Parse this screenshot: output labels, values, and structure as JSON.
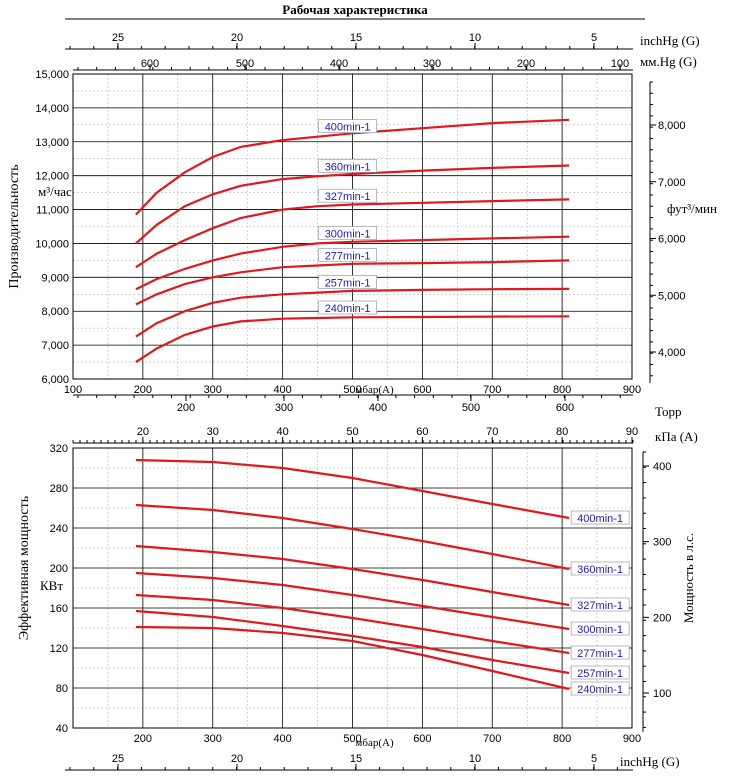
{
  "title": "Рабочая характеристика",
  "colors": {
    "curve": "#e0191e",
    "label_text": "#1a1ad0",
    "grid_major": "#000000",
    "grid_minor": "#b8b8b8"
  },
  "chart_data": [
    {
      "type": "line",
      "ylabel": "Производительность",
      "yunit": "м³/час",
      "y2label": "фут³/мин",
      "xlabel": "мбар(A)",
      "xlim": [
        100,
        900
      ],
      "ylim": [
        6000,
        15000
      ],
      "x_ticks": [
        "100",
        "200",
        "300",
        "400",
        "500",
        "600",
        "700",
        "800",
        "900"
      ],
      "y_ticks": [
        "6,000",
        "7,000",
        "8,000",
        "9,000",
        "10,000",
        "11,000",
        "12,000",
        "13,000",
        "14,000",
        "15,000"
      ],
      "y2_ticks": [
        "4,000",
        "5,000",
        "6,000",
        "7,000",
        "8,000"
      ],
      "top_axis1": {
        "label": "inchHg (G)",
        "ticks": [
          "25",
          "20",
          "15",
          "10",
          "5"
        ]
      },
      "top_axis2": {
        "label": "мм.Hg (G)",
        "ticks": [
          "600",
          "500",
          "400",
          "300",
          "200",
          "100"
        ]
      },
      "series": [
        {
          "name": "400min-1",
          "x": [
            190,
            220,
            260,
            300,
            340,
            400,
            450,
            500,
            600,
            700,
            810
          ],
          "y": [
            10850,
            11500,
            12100,
            12550,
            12850,
            13050,
            13150,
            13250,
            13400,
            13550,
            13650
          ]
        },
        {
          "name": "360min-1",
          "x": [
            190,
            220,
            260,
            300,
            340,
            400,
            450,
            500,
            600,
            700,
            810
          ],
          "y": [
            10000,
            10550,
            11100,
            11450,
            11700,
            11900,
            11980,
            12050,
            12150,
            12230,
            12300
          ]
        },
        {
          "name": "327min-1",
          "x": [
            190,
            220,
            260,
            300,
            340,
            400,
            450,
            500,
            600,
            700,
            810
          ],
          "y": [
            9300,
            9700,
            10100,
            10450,
            10750,
            11000,
            11100,
            11150,
            11200,
            11250,
            11300
          ]
        },
        {
          "name": "300min-1",
          "x": [
            190,
            220,
            260,
            300,
            340,
            400,
            450,
            500,
            600,
            700,
            810
          ],
          "y": [
            8650,
            8950,
            9250,
            9500,
            9700,
            9900,
            10000,
            10050,
            10100,
            10150,
            10200
          ]
        },
        {
          "name": "277min-1",
          "x": [
            190,
            220,
            260,
            300,
            340,
            400,
            450,
            500,
            600,
            700,
            810
          ],
          "y": [
            8200,
            8500,
            8800,
            9000,
            9150,
            9300,
            9350,
            9400,
            9420,
            9450,
            9500
          ]
        },
        {
          "name": "257min-1",
          "x": [
            190,
            220,
            260,
            300,
            340,
            400,
            450,
            500,
            600,
            700,
            810
          ],
          "y": [
            7250,
            7650,
            8000,
            8250,
            8400,
            8500,
            8550,
            8600,
            8630,
            8650,
            8660
          ]
        },
        {
          "name": "240min-1",
          "x": [
            190,
            220,
            260,
            300,
            340,
            400,
            450,
            500,
            600,
            700,
            810
          ],
          "y": [
            6500,
            6900,
            7300,
            7550,
            7700,
            7780,
            7800,
            7820,
            7830,
            7840,
            7850
          ]
        }
      ]
    },
    {
      "type": "line",
      "ylabel": "Эффективная мощность",
      "yunit": "КВт",
      "y2label": "Мощность в л.с.",
      "xlabel": "мбар(A)",
      "xlim": [
        100,
        900
      ],
      "ylim": [
        40,
        320
      ],
      "x_ticks": [
        "200",
        "300",
        "400",
        "500",
        "600",
        "700",
        "800",
        "900"
      ],
      "y_ticks": [
        "40",
        "80",
        "120",
        "160",
        "200",
        "240",
        "280",
        "320"
      ],
      "y2_ticks": [
        "100",
        "200",
        "300",
        "400"
      ],
      "top_axis1": {
        "label": "Торр",
        "ticks": [
          "200",
          "300",
          "400",
          "500",
          "600"
        ]
      },
      "top_axis2": {
        "label": "кПа (A)",
        "ticks": [
          "20",
          "30",
          "40",
          "50",
          "60",
          "70",
          "80",
          "90"
        ]
      },
      "bottom_axis2": {
        "label": "inchHg (G)",
        "ticks": [
          "25",
          "20",
          "15",
          "10",
          "5"
        ]
      },
      "series": [
        {
          "name": "400min-1",
          "x": [
            190,
            300,
            400,
            500,
            600,
            700,
            810
          ],
          "y": [
            308,
            306,
            300,
            290,
            277,
            264,
            250
          ]
        },
        {
          "name": "360min-1",
          "x": [
            190,
            300,
            400,
            500,
            600,
            700,
            810
          ],
          "y": [
            263,
            258,
            250,
            239,
            227,
            214,
            199
          ]
        },
        {
          "name": "327min-1",
          "x": [
            190,
            300,
            400,
            500,
            600,
            700,
            810
          ],
          "y": [
            222,
            216,
            209,
            199,
            188,
            176,
            163
          ]
        },
        {
          "name": "300min-1",
          "x": [
            190,
            300,
            400,
            500,
            600,
            700,
            810
          ],
          "y": [
            195,
            190,
            183,
            173,
            162,
            151,
            139
          ]
        },
        {
          "name": "277min-1",
          "x": [
            190,
            300,
            400,
            500,
            600,
            700,
            810
          ],
          "y": [
            173,
            168,
            160,
            150,
            139,
            127,
            115
          ]
        },
        {
          "name": "257min-1",
          "x": [
            190,
            300,
            400,
            500,
            600,
            700,
            810
          ],
          "y": [
            157,
            151,
            142,
            132,
            121,
            108,
            95
          ]
        },
        {
          "name": "240min-1",
          "x": [
            190,
            300,
            400,
            500,
            600,
            700,
            810
          ],
          "y": [
            141,
            140,
            135,
            127,
            113,
            97,
            79
          ]
        }
      ]
    }
  ]
}
